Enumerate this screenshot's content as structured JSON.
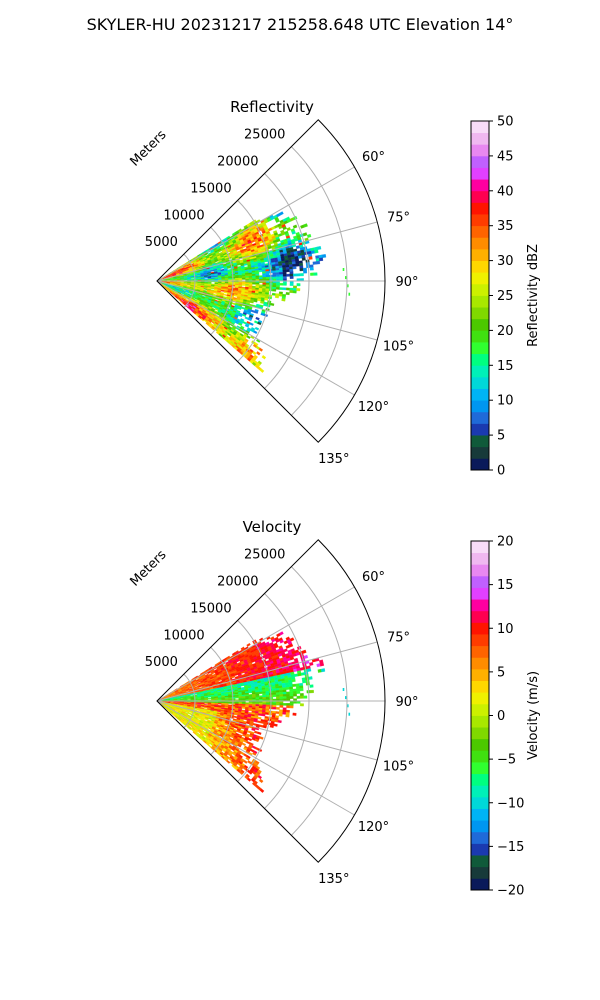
{
  "suptitle": "SKYLER-HU  20231217  215258.648 UTC Elevation 14°",
  "chart_data": [
    {
      "type": "heatmap",
      "subtype": "polar-sector PPI",
      "title": "Reflectivity",
      "radial_axis_label": "Meters",
      "radial_range": [
        0,
        30000
      ],
      "radial_ticks": [
        5000,
        10000,
        15000,
        20000,
        25000
      ],
      "radial_tick_labels": [
        "5000",
        "10000",
        "15000",
        "20000",
        "25000"
      ],
      "angle_range_deg": [
        45,
        135
      ],
      "angle_ticks_deg": [
        60,
        75,
        90,
        105,
        120,
        135
      ],
      "angle_tick_labels": [
        "60°",
        "75°",
        "90°",
        "105°",
        "120°",
        "135°"
      ],
      "grid": true,
      "colorbar": {
        "label": "Reflectivity dBZ",
        "range": [
          0,
          50
        ],
        "ticks": [
          0,
          5,
          10,
          15,
          20,
          25,
          30,
          35,
          40,
          45,
          50
        ],
        "tick_labels": [
          "0",
          "5",
          "10",
          "15",
          "20",
          "25",
          "30",
          "35",
          "40",
          "45",
          "50"
        ],
        "colors": [
          "#0a1a5a",
          "#173a3a",
          "#0f5a3a",
          "#1a3ab0",
          "#1f6ad8",
          "#0096f0",
          "#00b4f5",
          "#00d8d8",
          "#00f0b8",
          "#00ff80",
          "#30ff30",
          "#40e010",
          "#4cc800",
          "#80d800",
          "#a8e800",
          "#ccf000",
          "#f0f000",
          "#ffd700",
          "#ffb000",
          "#ff8c00",
          "#ff6400",
          "#ff3c00",
          "#ff1400",
          "#ff0050",
          "#ff00a0",
          "#e040ff",
          "#c060ff",
          "#e888f0",
          "#f0b8f0",
          "#f8dcf8"
        ]
      },
      "data_extent": {
        "max_range_m": [
          17000,
          23000
        ],
        "angle_span_deg": [
          65,
          130
        ],
        "dominant_values_dBZ": [
          15,
          30
        ],
        "peak_values_dBZ": [
          35,
          38
        ],
        "isolated_returns": {
          "angle_deg": 90,
          "range_m": 25000,
          "value_dBZ": 18
        }
      }
    },
    {
      "type": "heatmap",
      "subtype": "polar-sector PPI",
      "title": "Velocity",
      "radial_axis_label": "Meters",
      "radial_range": [
        0,
        30000
      ],
      "radial_ticks": [
        5000,
        10000,
        15000,
        20000,
        25000
      ],
      "radial_tick_labels": [
        "5000",
        "10000",
        "15000",
        "20000",
        "25000"
      ],
      "angle_range_deg": [
        45,
        135
      ],
      "angle_ticks_deg": [
        60,
        75,
        90,
        105,
        120,
        135
      ],
      "angle_tick_labels": [
        "60°",
        "75°",
        "90°",
        "105°",
        "120°",
        "135°"
      ],
      "grid": true,
      "colorbar": {
        "label": "Velocity (m/s)",
        "range": [
          -20,
          20
        ],
        "ticks": [
          -20,
          -15,
          -10,
          -5,
          0,
          5,
          10,
          15,
          20
        ],
        "tick_labels": [
          "−20",
          "−15",
          "−10",
          "−5",
          "0",
          "5",
          "10",
          "15",
          "20"
        ],
        "colors": [
          "#0a1a5a",
          "#173a3a",
          "#0f5a3a",
          "#1a3ab0",
          "#1f6ad8",
          "#0096f0",
          "#00b4f5",
          "#00d8d8",
          "#00f0b8",
          "#00ff80",
          "#30ff30",
          "#40e010",
          "#4cc800",
          "#80d800",
          "#a8e800",
          "#ccf000",
          "#f0f000",
          "#ffd700",
          "#ffb000",
          "#ff8c00",
          "#ff6400",
          "#ff3c00",
          "#ff1400",
          "#ff0050",
          "#ff00a0",
          "#e040ff",
          "#c060ff",
          "#e888f0",
          "#f0b8f0",
          "#f8dcf8"
        ]
      },
      "data_extent": {
        "max_range_m": [
          17000,
          23000
        ],
        "angle_span_deg": [
          65,
          130
        ],
        "north_sector_m_s": [
          5,
          14
        ],
        "near_90deg_m_s": [
          -12,
          -6
        ],
        "south_sector_m_s": [
          0,
          14
        ]
      }
    }
  ]
}
